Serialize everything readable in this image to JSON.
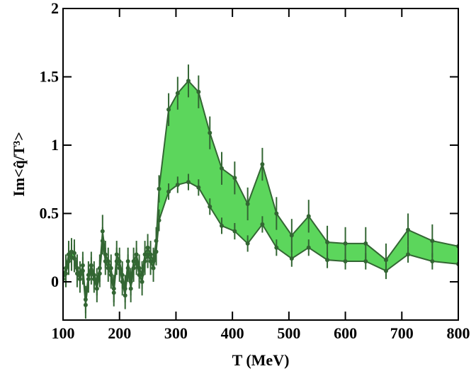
{
  "chart_data": {
    "type": "band",
    "xlabel": "T (MeV)",
    "ylabel": "Im<q̂/T³>",
    "x": [
      100,
      105,
      110,
      115,
      120,
      125,
      130,
      135,
      140,
      145,
      150,
      155,
      160,
      165,
      170,
      175,
      180,
      185,
      190,
      195,
      200,
      205,
      210,
      215,
      220,
      225,
      230,
      235,
      240,
      245,
      250,
      255,
      260,
      265,
      270,
      287,
      303,
      322,
      340,
      360,
      381,
      404,
      427,
      453,
      478,
      505,
      535,
      568,
      600,
      636,
      672,
      711,
      754,
      800
    ],
    "series": [
      {
        "name": "upper",
        "color": "#336633",
        "values": [
          0.05,
          0.1,
          0.2,
          0.22,
          0.21,
          0.1,
          0.05,
          0.12,
          -0.13,
          0.05,
          0.12,
          0.05,
          0.0,
          0.1,
          0.37,
          0.2,
          0.15,
          0.1,
          -0.05,
          0.2,
          0.15,
          0.05,
          -0.05,
          0.15,
          0.0,
          0.15,
          0.2,
          0.1,
          0.05,
          0.2,
          0.25,
          0.2,
          0.15,
          0.3,
          0.68,
          1.26,
          1.38,
          1.47,
          1.39,
          1.09,
          0.83,
          0.76,
          0.57,
          0.86,
          0.5,
          0.34,
          0.48,
          0.29,
          0.28,
          0.28,
          0.16,
          0.38,
          0.3,
          0.26
        ],
        "errors": [
          0.1,
          0.1,
          0.1,
          0.1,
          0.1,
          0.1,
          0.1,
          0.1,
          0.1,
          0.1,
          0.1,
          0.1,
          0.1,
          0.1,
          0.12,
          0.1,
          0.1,
          0.1,
          0.1,
          0.1,
          0.1,
          0.1,
          0.1,
          0.1,
          0.1,
          0.1,
          0.1,
          0.1,
          0.1,
          0.1,
          0.1,
          0.1,
          0.1,
          0.1,
          0.1,
          0.12,
          0.12,
          0.12,
          0.12,
          0.12,
          0.12,
          0.12,
          0.12,
          0.12,
          0.12,
          0.12,
          0.12,
          0.12,
          0.12,
          0.12,
          0.12,
          0.12,
          0.12,
          0.12
        ]
      },
      {
        "name": "lower",
        "color": "#336633",
        "values": [
          0.02,
          0.06,
          0.15,
          0.18,
          0.17,
          0.06,
          0.02,
          0.08,
          -0.17,
          0.02,
          0.08,
          0.02,
          -0.05,
          0.06,
          0.3,
          0.15,
          0.1,
          0.05,
          -0.08,
          0.15,
          0.1,
          0.0,
          -0.1,
          0.1,
          -0.05,
          0.1,
          0.15,
          0.05,
          0.0,
          0.15,
          0.2,
          0.15,
          0.1,
          0.22,
          0.45,
          0.66,
          0.71,
          0.73,
          0.69,
          0.55,
          0.41,
          0.37,
          0.28,
          0.42,
          0.25,
          0.17,
          0.25,
          0.16,
          0.15,
          0.15,
          0.08,
          0.2,
          0.15,
          0.13
        ],
        "errors": [
          0.1,
          0.1,
          0.1,
          0.1,
          0.1,
          0.1,
          0.1,
          0.1,
          0.1,
          0.1,
          0.1,
          0.1,
          0.1,
          0.1,
          0.1,
          0.1,
          0.1,
          0.1,
          0.1,
          0.1,
          0.1,
          0.1,
          0.1,
          0.1,
          0.1,
          0.1,
          0.1,
          0.1,
          0.1,
          0.1,
          0.1,
          0.1,
          0.1,
          0.1,
          0.08,
          0.06,
          0.06,
          0.06,
          0.06,
          0.06,
          0.06,
          0.06,
          0.06,
          0.06,
          0.06,
          0.06,
          0.06,
          0.06,
          0.06,
          0.06,
          0.06,
          0.06,
          0.06,
          0.06
        ]
      }
    ],
    "fill_color": "#5cd65c",
    "xlim": [
      100,
      800
    ],
    "xticks": [
      100,
      200,
      300,
      400,
      500,
      600,
      700,
      800
    ],
    "ylim": [
      -0.28,
      2
    ],
    "yticks": [
      0,
      0.5,
      1,
      1.5,
      2
    ]
  }
}
